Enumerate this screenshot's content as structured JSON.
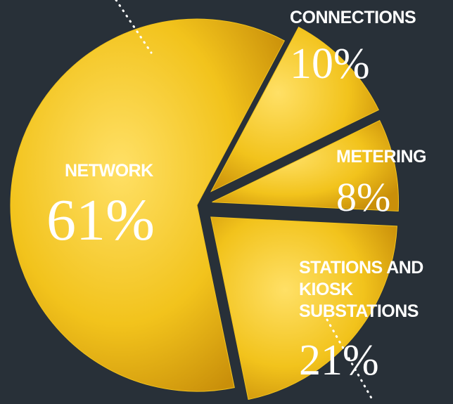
{
  "chart_data": {
    "type": "pie",
    "categories": [
      "NETWORK",
      "CONNECTIONS",
      "METERING",
      "STATIONS AND KIOSK SUBSTATIONS"
    ],
    "values": [
      61,
      10,
      8,
      21
    ],
    "value_labels": [
      "61%",
      "10%",
      "8%",
      "21%"
    ],
    "color": "#f2c31c"
  }
}
